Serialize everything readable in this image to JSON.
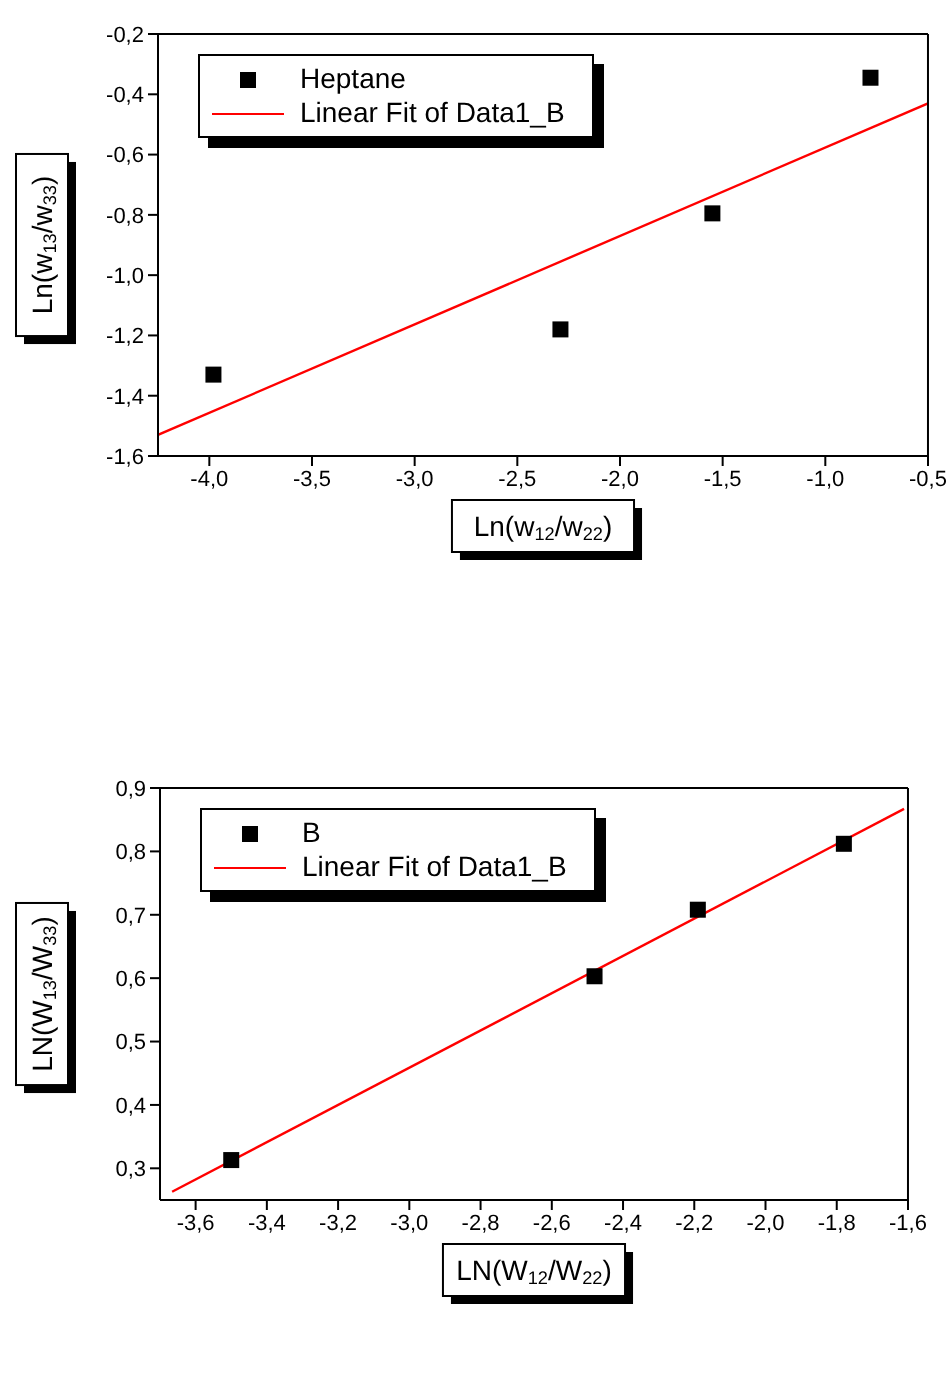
{
  "chart_data": [
    {
      "type": "scatter",
      "xlabel": "Ln(w$_{12}$/w$_{22}$)",
      "ylabel": "Ln(w$_{13}$/w$_{33}$)",
      "legend": "top left",
      "xlim": [
        -4.25,
        -0.5
      ],
      "xticks": [
        {
          "value": -4,
          "label": "-4,0"
        },
        {
          "value": -3.5,
          "label": "-3,5"
        },
        {
          "value": -3,
          "label": "-3,0"
        },
        {
          "value": -2.5,
          "label": "-2,5"
        },
        {
          "value": -2,
          "label": "-2,0"
        },
        {
          "value": -1.5,
          "label": "-1,5"
        },
        {
          "value": -1,
          "label": "-1,0"
        },
        {
          "value": -0.5,
          "label": "-0,5"
        }
      ],
      "ylim": [
        -1.6,
        -0.2
      ],
      "yticks": [
        {
          "value": -1.6,
          "label": "-1,6"
        },
        {
          "value": -1.4,
          "label": "-1,4"
        },
        {
          "value": -1.2,
          "label": "-1,2"
        },
        {
          "value": -1,
          "label": "-1,0"
        },
        {
          "value": -0.8,
          "label": "-0,8"
        },
        {
          "value": -0.6,
          "label": "-0,6"
        },
        {
          "value": -0.4,
          "label": "-0,4"
        },
        {
          "value": -0.2,
          "label": "-0,2"
        }
      ],
      "series": [
        {
          "name": "Heptane",
          "type": "scatter",
          "marker": "square",
          "color": "#000000",
          "x": [
            -3.98,
            -2.29,
            -1.55,
            -0.78
          ],
          "values": [
            -1.33,
            -1.18,
            -0.795,
            -0.345
          ]
        },
        {
          "name": "Linear Fit of Data1_B",
          "type": "line",
          "color": "#ff0000",
          "x": [
            -4.25,
            -0.5
          ],
          "values": [
            -1.53,
            -0.43
          ]
        }
      ]
    },
    {
      "type": "scatter",
      "xlabel": "LN(W$_{12}$/W$_{22}$)",
      "ylabel": "LN(W$_{13}$/W$_{33}$)",
      "legend": "top left",
      "xlim": [
        -3.7,
        -1.6
      ],
      "xticks": [
        {
          "value": -3.6,
          "label": "-3,6"
        },
        {
          "value": -3.4,
          "label": "-3,4"
        },
        {
          "value": -3.2,
          "label": "-3,2"
        },
        {
          "value": -3,
          "label": "-3,0"
        },
        {
          "value": -2.8,
          "label": "-2,8"
        },
        {
          "value": -2.6,
          "label": "-2,6"
        },
        {
          "value": -2.4,
          "label": "-2,4"
        },
        {
          "value": -2.2,
          "label": "-2,2"
        },
        {
          "value": -2,
          "label": "-2,0"
        },
        {
          "value": -1.8,
          "label": "-1,8"
        },
        {
          "value": -1.6,
          "label": "-1,6"
        }
      ],
      "ylim": [
        0.25,
        0.9
      ],
      "yticks": [
        {
          "value": 0.3,
          "label": "0,3"
        },
        {
          "value": 0.4,
          "label": "0,4"
        },
        {
          "value": 0.5,
          "label": "0,5"
        },
        {
          "value": 0.6,
          "label": "0,6"
        },
        {
          "value": 0.7,
          "label": "0,7"
        },
        {
          "value": 0.8,
          "label": "0,8"
        },
        {
          "value": 0.9,
          "label": "0,9"
        }
      ],
      "series": [
        {
          "name": "B",
          "type": "scatter",
          "marker": "square",
          "color": "#000000",
          "x": [
            -3.5,
            -2.48,
            -2.19,
            -1.78
          ],
          "values": [
            0.313,
            0.603,
            0.708,
            0.812
          ]
        },
        {
          "name": "Linear Fit of Data1_B",
          "type": "line",
          "color": "#ff0000",
          "x": [
            -3.666,
            -1.611
          ],
          "values": [
            0.263,
            0.867
          ]
        }
      ]
    }
  ]
}
